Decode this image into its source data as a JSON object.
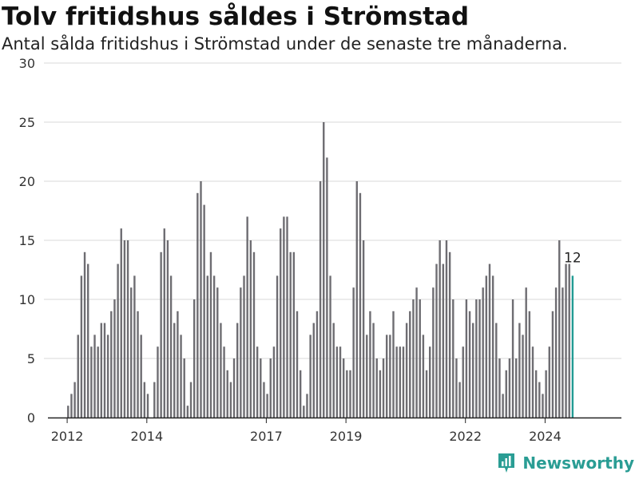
{
  "colors": {
    "bar": "#6e6d72",
    "highlight": "#219b93",
    "grid": "#d9d9d9",
    "axis": "#222222",
    "brand": "#2a9d94"
  },
  "brand": {
    "name": "Newsworthy",
    "icon": "newsworthy-logo-icon"
  },
  "chart_data": {
    "type": "bar",
    "title": "Tolv fritidshus såldes i Strömstad",
    "subtitle": "Antal sålda fritidshus i Strömstad under de senaste tre månaderna.",
    "xlabel": "",
    "ylabel": "",
    "ylim": [
      0,
      30
    ],
    "yticks": [
      0,
      5,
      10,
      15,
      20,
      25,
      30
    ],
    "xlim": [
      "2011-06",
      "2025-12"
    ],
    "xticks": [
      {
        "label": "2012",
        "month": "2012-01"
      },
      {
        "label": "2014",
        "month": "2014-01"
      },
      {
        "label": "2017",
        "month": "2017-01"
      },
      {
        "label": "2019",
        "month": "2019-01"
      },
      {
        "label": "2022",
        "month": "2022-01"
      },
      {
        "label": "2024",
        "month": "2024-01"
      }
    ],
    "grid": true,
    "start_month": "2012-01",
    "values": [
      1,
      2,
      3,
      7,
      12,
      14,
      13,
      6,
      7,
      6,
      8,
      8,
      7,
      9,
      10,
      13,
      16,
      15,
      15,
      11,
      12,
      9,
      7,
      3,
      2,
      0,
      3,
      6,
      14,
      16,
      15,
      12,
      8,
      9,
      7,
      5,
      1,
      3,
      10,
      19,
      20,
      18,
      12,
      14,
      12,
      11,
      8,
      6,
      4,
      3,
      5,
      8,
      11,
      12,
      17,
      15,
      14,
      6,
      5,
      3,
      2,
      5,
      6,
      12,
      16,
      17,
      17,
      14,
      14,
      9,
      4,
      1,
      2,
      7,
      8,
      9,
      20,
      25,
      22,
      12,
      8,
      6,
      6,
      5,
      4,
      4,
      11,
      20,
      19,
      15,
      7,
      9,
      8,
      5,
      4,
      5,
      7,
      7,
      9,
      6,
      6,
      6,
      8,
      9,
      10,
      11,
      10,
      7,
      4,
      6,
      11,
      13,
      15,
      13,
      15,
      14,
      10,
      5,
      3,
      6,
      10,
      9,
      8,
      10,
      10,
      11,
      12,
      13,
      12,
      8,
      5,
      2,
      4,
      5,
      10,
      5,
      8,
      7,
      11,
      9,
      6,
      4,
      3,
      2,
      4,
      6,
      9,
      11,
      15,
      11,
      13,
      13,
      12
    ],
    "highlight_index": 152,
    "highlight_label": "12"
  }
}
